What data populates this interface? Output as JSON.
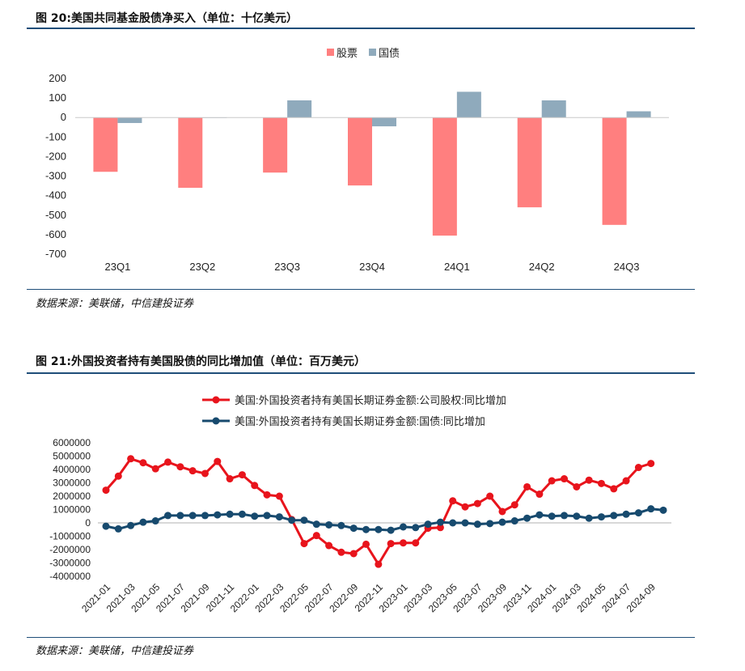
{
  "figures": [
    {
      "title": "图 20:美国共同基金股债净买入（单位：十亿美元）",
      "source": "数据来源：美联储，中信建投证券"
    },
    {
      "title": "图 21:外国投资者持有美国股债的同比增加值（单位：百万美元）",
      "source": "数据来源：美联储，中信建投证券"
    }
  ],
  "chart_data": [
    {
      "type": "bar",
      "categories": [
        "23Q1",
        "23Q2",
        "23Q3",
        "23Q4",
        "24Q1",
        "24Q2",
        "24Q3"
      ],
      "series": [
        {
          "name": "股票",
          "color": "#ff7f7f",
          "values": [
            -278,
            -360,
            -282,
            -348,
            -605,
            -460,
            -550
          ]
        },
        {
          "name": "国债",
          "color": "#8faabc",
          "values": [
            -28,
            0,
            88,
            -45,
            132,
            88,
            32
          ]
        }
      ],
      "ylim": [
        -700,
        200
      ],
      "yticks": [
        200,
        100,
        0,
        -100,
        -200,
        -300,
        -400,
        -500,
        -600,
        -700
      ],
      "legend": "top-center",
      "grid": false
    },
    {
      "type": "line",
      "x": [
        "2021-01",
        "2021-02",
        "2021-03",
        "2021-04",
        "2021-05",
        "2021-06",
        "2021-07",
        "2021-08",
        "2021-09",
        "2021-10",
        "2021-11",
        "2021-12",
        "2022-01",
        "2022-02",
        "2022-03",
        "2022-04",
        "2022-05",
        "2022-06",
        "2022-07",
        "2022-08",
        "2022-09",
        "2022-10",
        "2022-11",
        "2022-12",
        "2023-01",
        "2023-02",
        "2023-03",
        "2023-04",
        "2023-05",
        "2023-06",
        "2023-07",
        "2023-08",
        "2023-09",
        "2023-10",
        "2023-11",
        "2023-12",
        "2024-01",
        "2024-02",
        "2024-03",
        "2024-04",
        "2024-05",
        "2024-06",
        "2024-07",
        "2024-08",
        "2024-09",
        "2024-10"
      ],
      "xticks": [
        "2021-01",
        "2021-03",
        "2021-05",
        "2021-07",
        "2021-09",
        "2021-11",
        "2022-01",
        "2022-03",
        "2022-05",
        "2022-07",
        "2022-09",
        "2022-11",
        "2023-01",
        "2023-03",
        "2023-05",
        "2023-07",
        "2023-09",
        "2023-11",
        "2024-01",
        "2024-03",
        "2024-05",
        "2024-07",
        "2024-09"
      ],
      "series": [
        {
          "name": "美国:外国投资者持有美国长期证券金额:公司股权:同比增加",
          "color": "#e8141c",
          "values": [
            2450000,
            3500000,
            4800000,
            4500000,
            4050000,
            4550000,
            4200000,
            3900000,
            3700000,
            4600000,
            3300000,
            3600000,
            2800000,
            2100000,
            2000000,
            250000,
            -1550000,
            -950000,
            -1700000,
            -2200000,
            -2300000,
            -1600000,
            -3100000,
            -1550000,
            -1500000,
            -1500000,
            -400000,
            -350000,
            1650000,
            1200000,
            1450000,
            2000000,
            850000,
            1350000,
            2700000,
            2150000,
            3150000,
            3300000,
            2700000,
            3200000,
            2950000,
            2550000,
            3150000,
            4150000,
            4450000,
            null
          ]
        },
        {
          "name": "美国:外国投资者持有美国长期证券金额:国债:同比增加",
          "color": "#174a6e",
          "values": [
            -250000,
            -450000,
            -200000,
            50000,
            150000,
            550000,
            550000,
            550000,
            550000,
            600000,
            650000,
            650000,
            500000,
            550000,
            450000,
            200000,
            200000,
            -100000,
            -150000,
            -200000,
            -400000,
            -500000,
            -500000,
            -550000,
            -300000,
            -350000,
            -100000,
            50000,
            0,
            0,
            -100000,
            -50000,
            50000,
            150000,
            350000,
            600000,
            500000,
            550000,
            500000,
            350000,
            450000,
            550000,
            650000,
            750000,
            1050000,
            950000
          ]
        }
      ],
      "ylim": [
        -4000000,
        6000000
      ],
      "yticks": [
        6000000,
        5000000,
        4000000,
        3000000,
        2000000,
        1000000,
        0,
        -1000000,
        -2000000,
        -3000000,
        -4000000
      ],
      "legend": "top-center",
      "grid": false
    }
  ]
}
